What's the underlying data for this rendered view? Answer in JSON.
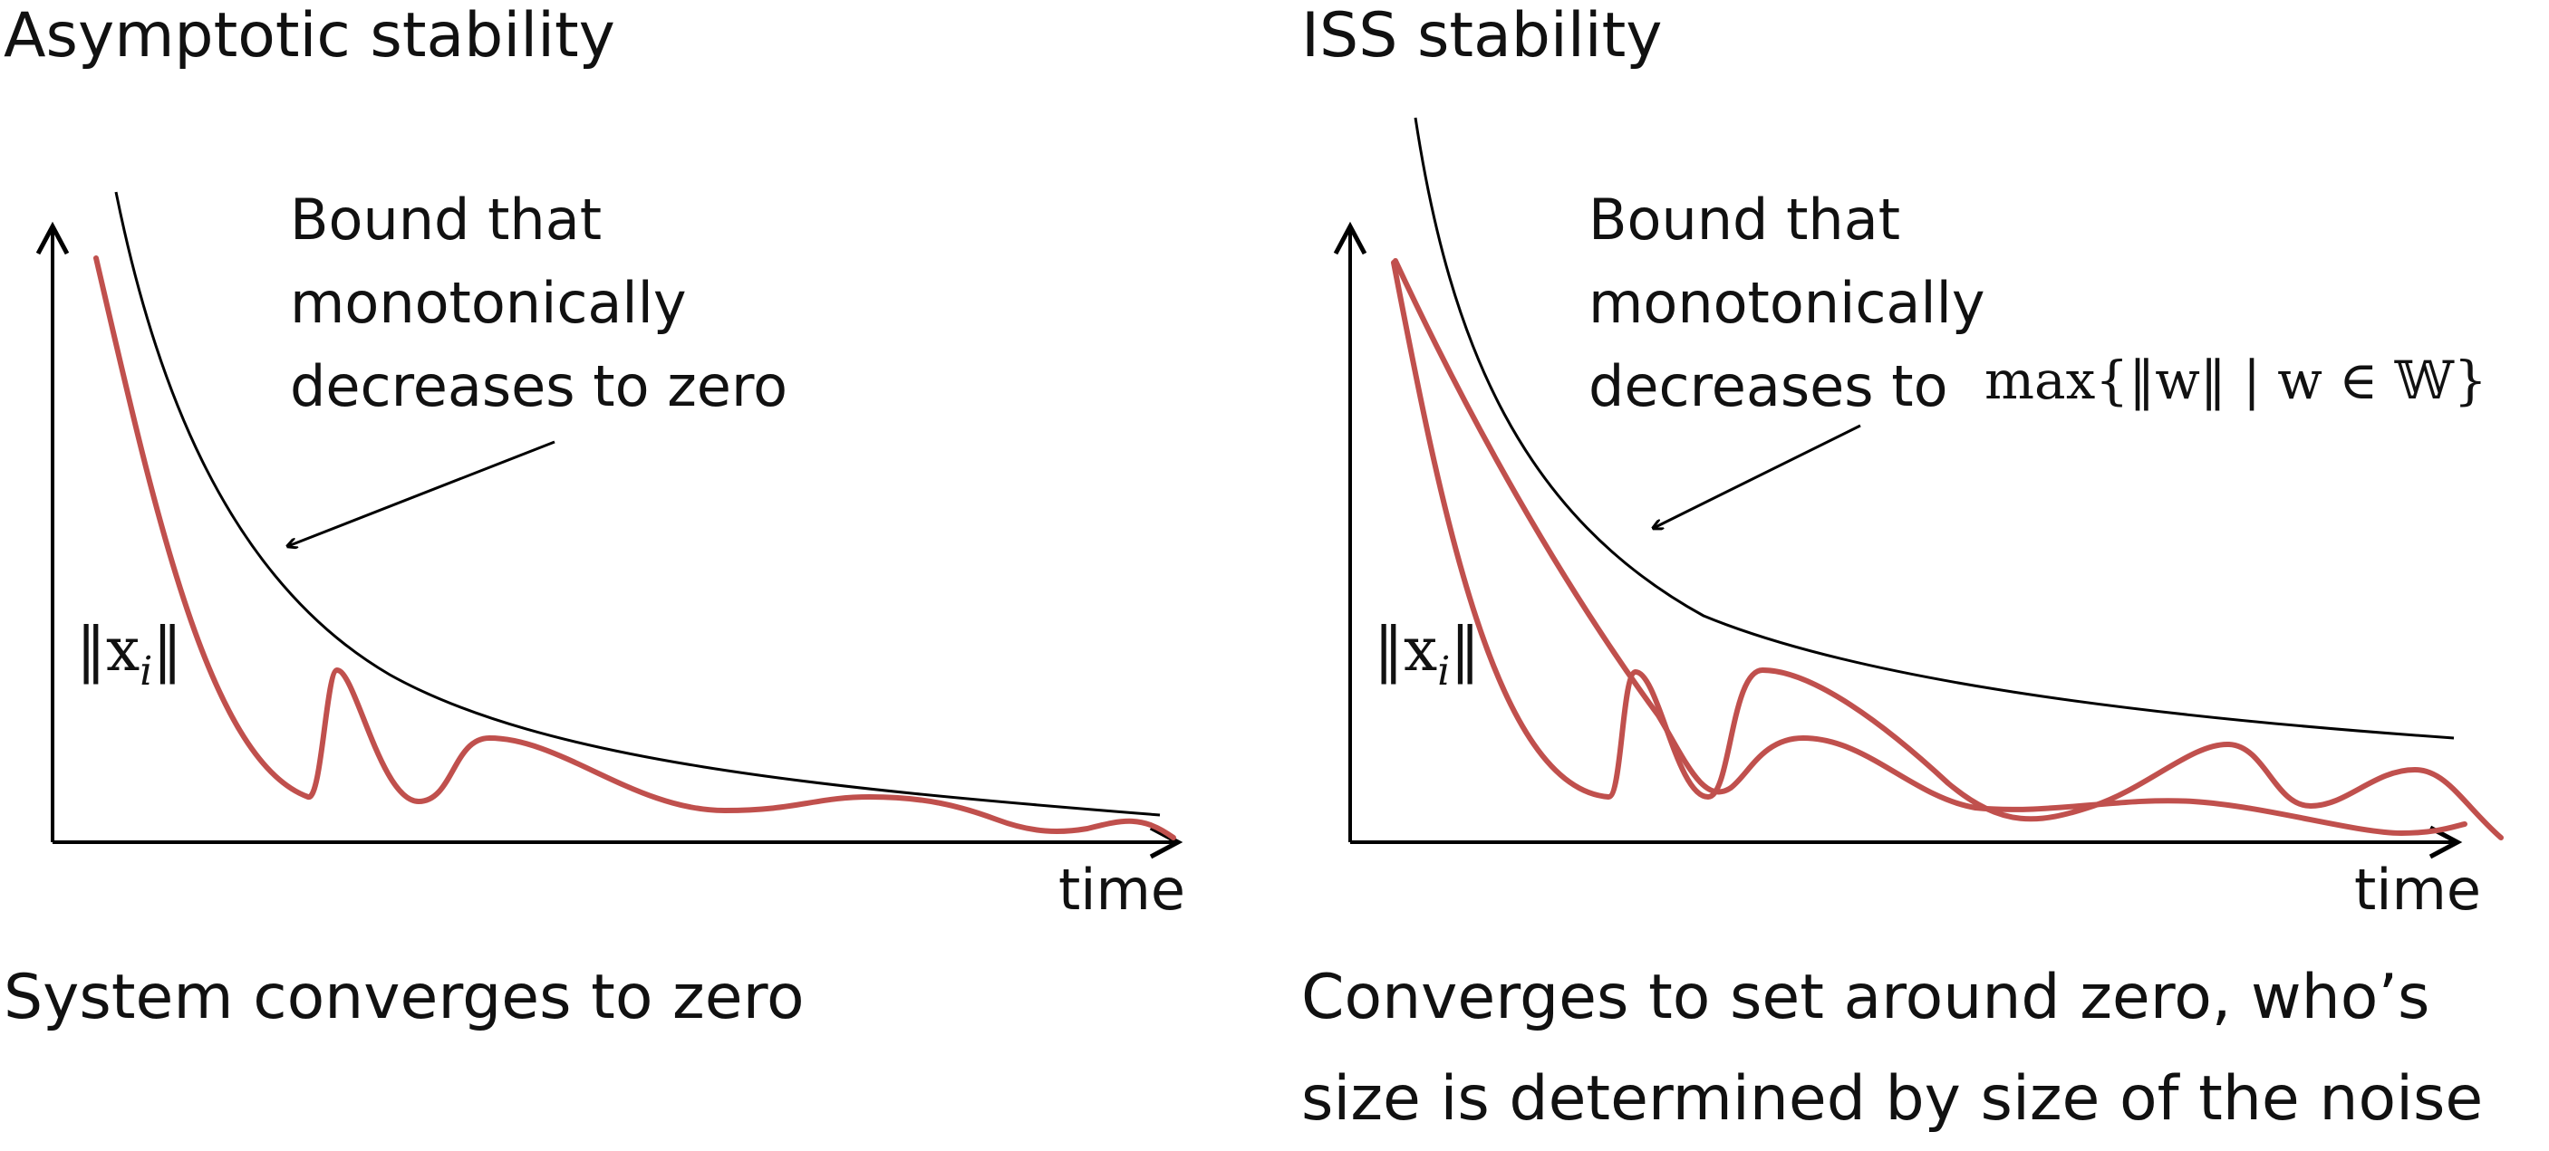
{
  "left_panel": {
    "title": "Asymptotic stability",
    "bound_label": [
      "Bound that",
      "monotonically",
      "decreases to zero"
    ],
    "y_label": "‖x",
    "y_label_sub": "i",
    "y_label_end": "‖",
    "x_label": "time",
    "caption": "System converges to zero"
  },
  "right_panel": {
    "title": "ISS stability",
    "bound_label": [
      "Bound that",
      "monotonically",
      "decreases to"
    ],
    "bound_label_math": "max{‖w‖ | w ∈ 𝕎}",
    "y_label": "‖x",
    "y_label_sub": "i",
    "y_label_end": "‖",
    "x_label": "time",
    "caption": [
      "Converges to set around zero, who’s",
      "size is determined by size of the noise"
    ]
  },
  "colors": {
    "trajectory": "#c0504d",
    "bound": "#000000",
    "axes": "#000000"
  }
}
